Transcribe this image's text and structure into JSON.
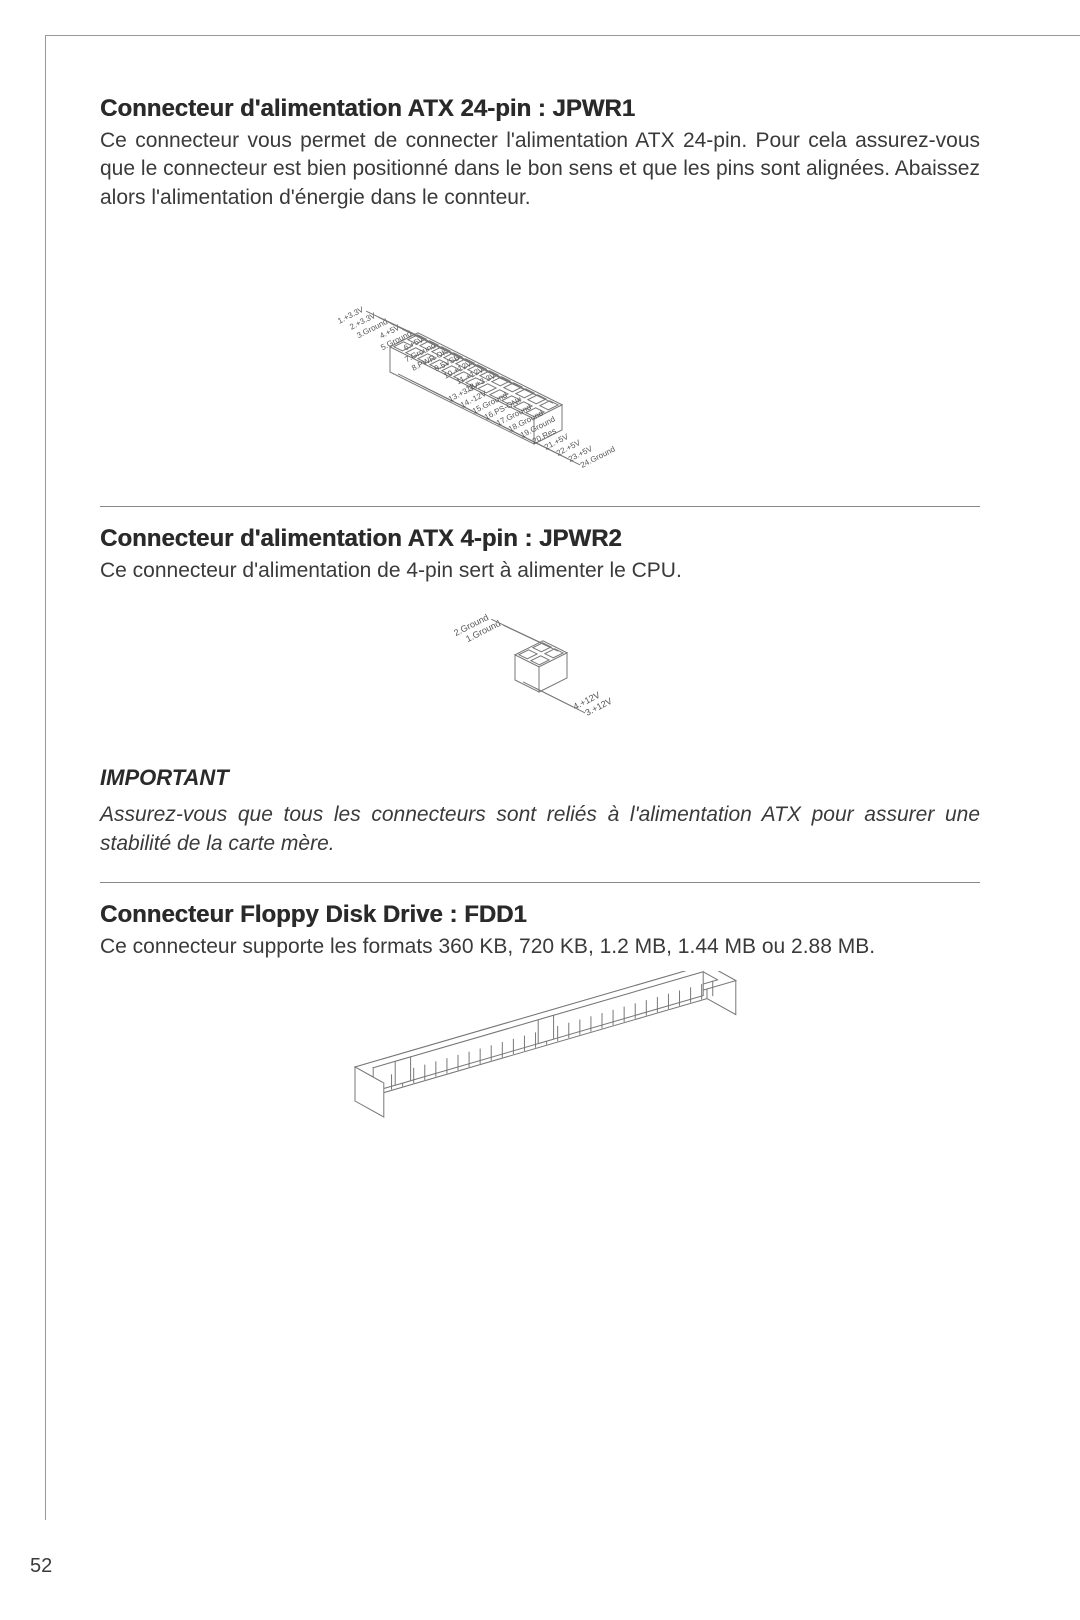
{
  "page_number": "52",
  "colors": {
    "text": "#333333",
    "heading": "#2a2a2a",
    "line": "#888888",
    "diagram_stroke": "#777777",
    "background": "#ffffff"
  },
  "sections": {
    "jpwr1": {
      "title": "Connecteur d'alimentation ATX 24-pin : JPWR1",
      "body": "Ce connecteur vous permet de connecter l'alimentation ATX 24-pin. Pour cela assurez-vous que le connecteur est bien positionné dans le bon sens et que les pins sont alignées. Abaissez alors l'alimentation d'énergie dans le connteur.",
      "pins_left": [
        "12.+3.3V",
        "11.+12V",
        "10.+12V",
        "9.5VSB",
        "8.PWR OK",
        "7.Ground",
        "6.+5V",
        "5.Ground",
        "4.+5V",
        "3.Ground",
        "2.+3.3V",
        "1.+3.3V"
      ],
      "pins_right": [
        "24.Ground",
        "23.+5V",
        "22.+5V",
        "21.+5V",
        "20.Res",
        "19.Ground",
        "18.Ground",
        "17.Ground",
        "16.PS-ON#",
        "15.Ground",
        "14.-12V",
        "13.+3.3V"
      ]
    },
    "jpwr2": {
      "title": "Connecteur d'alimentation ATX 4-pin : JPWR2",
      "body": "Ce connecteur d'alimentation de 4-pin sert à alimenter le CPU.",
      "pins_left": [
        "1.Ground",
        "2.Ground"
      ],
      "pins_right": [
        "3.+12V",
        "4.+12V"
      ]
    },
    "important": {
      "label": "IMPORTANT",
      "text": "Assurez-vous que tous les connecteurs sont reliés à l'alimentation ATX pour assurer une stabilité de la carte mère."
    },
    "fdd1": {
      "title": "Connecteur Floppy Disk Drive : FDD1",
      "body": "Ce connecteur supporte les formats 360 KB, 720 KB, 1.2 MB, 1.44 MB ou 2.88 MB."
    }
  }
}
